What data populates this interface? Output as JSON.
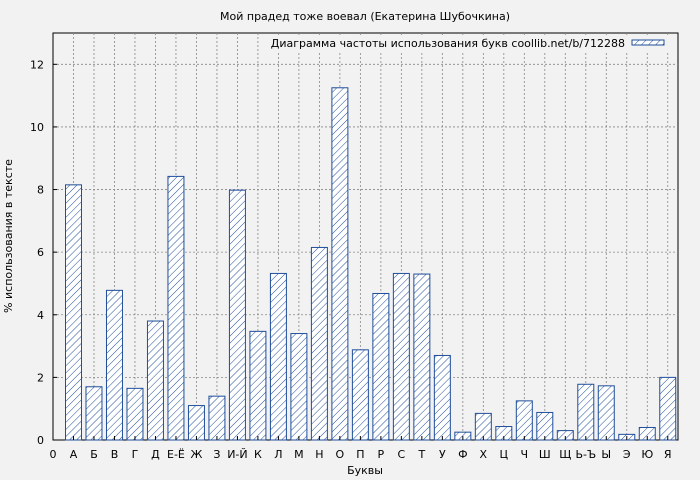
{
  "chart_data": {
    "type": "bar",
    "title": "Мой прадед тоже воевал (Екатерина Шубочкина)",
    "xlabel": "Буквы",
    "ylabel": "% использования в тексте",
    "x_axis_start_label": "0",
    "categories": [
      "А",
      "Б",
      "В",
      "Г",
      "Д",
      "Е-Ё",
      "Ж",
      "З",
      "И-Й",
      "К",
      "Л",
      "М",
      "Н",
      "О",
      "П",
      "Р",
      "С",
      "Т",
      "У",
      "Ф",
      "Х",
      "Ц",
      "Ч",
      "Ш",
      "Щ",
      "Ь-Ъ",
      "Ы",
      "Э",
      "Ю",
      "Я"
    ],
    "series": [
      {
        "name": "Диаграмма частоты использования букв coollib.net/b/712288",
        "values": [
          8.15,
          1.7,
          4.78,
          1.65,
          3.8,
          8.42,
          1.1,
          1.4,
          7.98,
          3.47,
          5.32,
          3.4,
          6.15,
          11.25,
          2.88,
          4.68,
          5.32,
          5.3,
          2.7,
          0.25,
          0.85,
          0.43,
          1.25,
          0.88,
          0.3,
          1.78,
          1.73,
          0.18,
          0.4,
          2.0
        ]
      }
    ],
    "ylim": [
      0,
      13
    ],
    "yticks": [
      0,
      2,
      4,
      6,
      8,
      10,
      12
    ],
    "grid": true,
    "legend_position": "top-right",
    "colors": {
      "bar_stroke": "#1f4e9a",
      "bar_fill": "#ffffff",
      "grid": "#888888"
    }
  }
}
